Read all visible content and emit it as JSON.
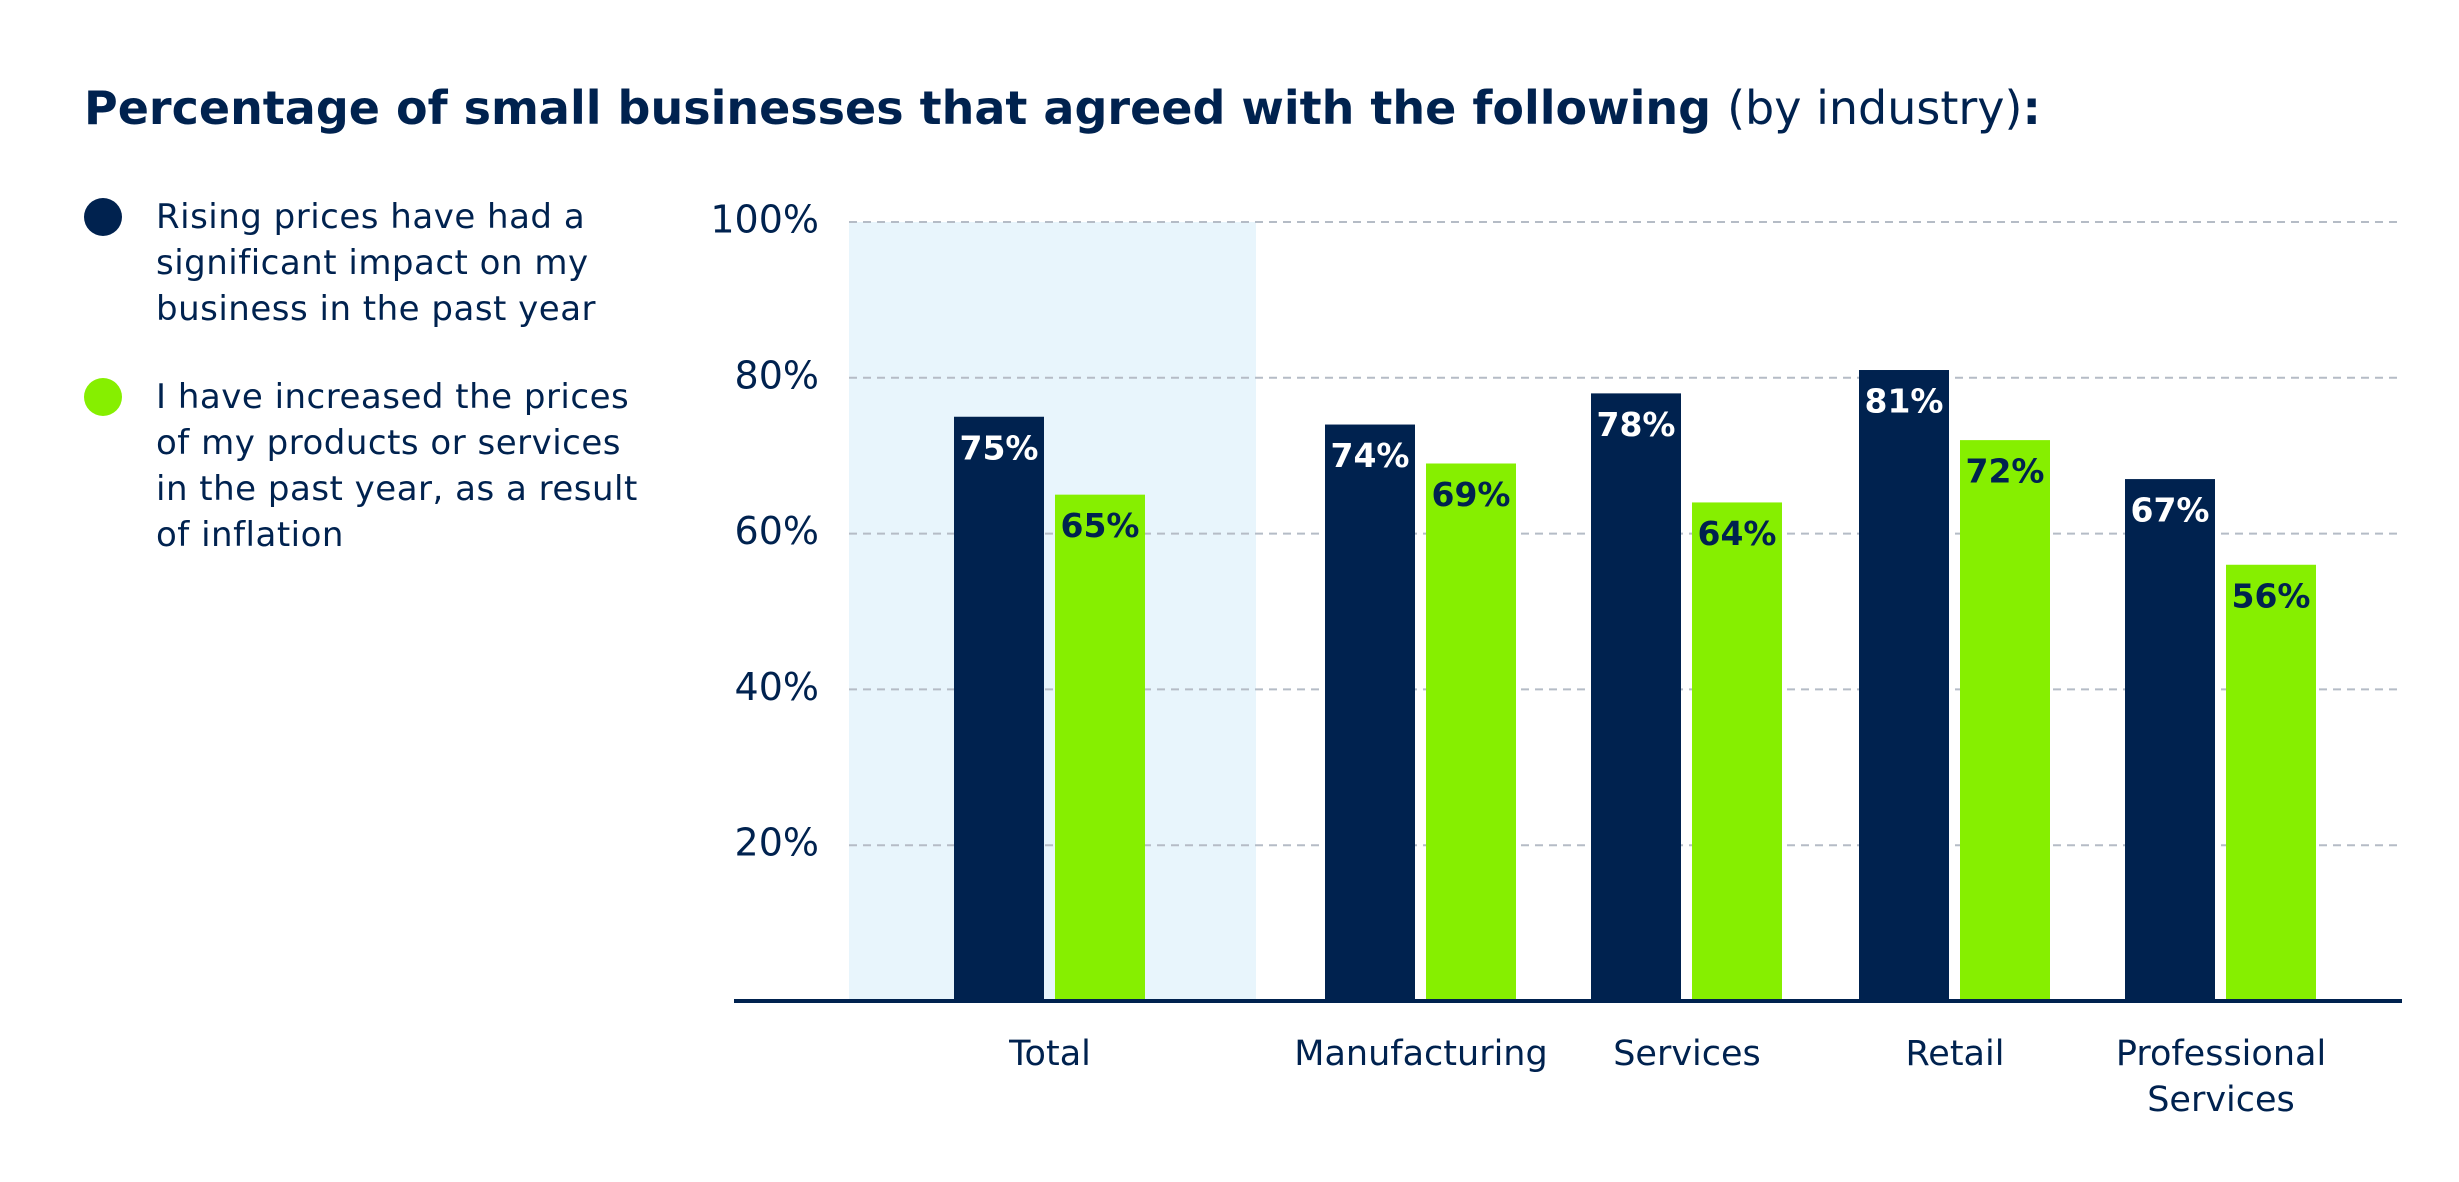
{
  "chart_data": {
    "type": "bar",
    "title": [
      "Percentage of small businesses that agreed with the following ",
      "(by industry)",
      ":"
    ],
    "categories": [
      "Total",
      "Manufacturing",
      "Services",
      "Retail",
      "Professional Services"
    ],
    "series": [
      {
        "name": "Rising prices have had a significant impact on my business in the past year",
        "color": "#00224f",
        "values": [
          75,
          74,
          78,
          81,
          67
        ],
        "value_labels": [
          "75%",
          "74%",
          "78%",
          "81%",
          "67%"
        ]
      },
      {
        "name": "I have increased the prices of my products or services in the past year, as a result of inflation",
        "color": "#86ef00",
        "values": [
          65,
          69,
          64,
          72,
          56
        ],
        "value_labels": [
          "65%",
          "69%",
          "64%",
          "72%",
          "56%"
        ]
      }
    ],
    "ylim": [
      0,
      100
    ],
    "yticks": [
      {
        "value": 20,
        "label": "20%"
      },
      {
        "value": 40,
        "label": "40%"
      },
      {
        "value": 60,
        "label": "60%"
      },
      {
        "value": 80,
        "label": "80%"
      },
      {
        "value": 100,
        "label": "100%"
      }
    ],
    "grid": true
  }
}
